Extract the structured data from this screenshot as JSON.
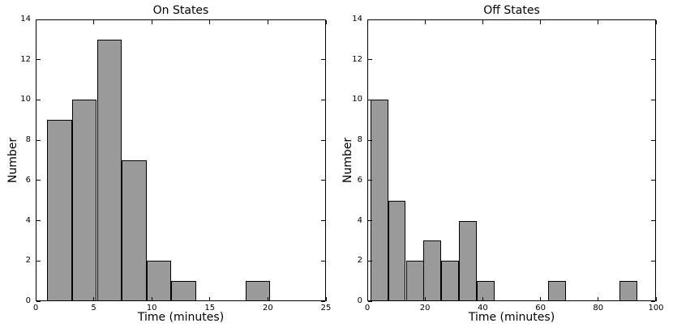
{
  "figure": {
    "background": "#ffffff",
    "bar_fill": "#9a9a9a",
    "bar_edge": "#000000",
    "axis_color": "#000000"
  },
  "chart_data": [
    {
      "type": "bar",
      "subtype": "histogram",
      "title": "On States",
      "xlabel": "Time (minutes)",
      "ylabel": "Number",
      "xlim": [
        0,
        25
      ],
      "ylim": [
        0,
        14
      ],
      "xticks": [
        0,
        5,
        10,
        15,
        20,
        25
      ],
      "yticks": [
        0,
        2,
        4,
        6,
        8,
        10,
        12,
        14
      ],
      "grid": false,
      "legend": false,
      "bin_edges": [
        1.0,
        3.13,
        5.27,
        7.4,
        9.53,
        11.67,
        13.8,
        15.93,
        18.07,
        20.2
      ],
      "counts": [
        9,
        10,
        13,
        7,
        2,
        1,
        0,
        0,
        1
      ]
    },
    {
      "type": "bar",
      "subtype": "histogram",
      "title": "Off States",
      "xlabel": "Time (minutes)",
      "ylabel": "Number",
      "xlim": [
        0,
        100
      ],
      "ylim": [
        0,
        14
      ],
      "xticks": [
        0,
        20,
        40,
        60,
        80,
        100
      ],
      "yticks": [
        0,
        2,
        4,
        6,
        8,
        10,
        12,
        14
      ],
      "grid": false,
      "legend": false,
      "bin_edges": [
        1.0,
        7.17,
        13.33,
        19.5,
        25.67,
        31.83,
        38.0,
        44.17,
        50.33,
        56.5,
        62.67,
        68.83,
        75.0,
        81.17,
        87.33,
        93.5
      ],
      "counts": [
        10,
        5,
        2,
        3,
        2,
        4,
        1,
        0,
        0,
        0,
        1,
        0,
        0,
        0,
        1
      ]
    }
  ]
}
